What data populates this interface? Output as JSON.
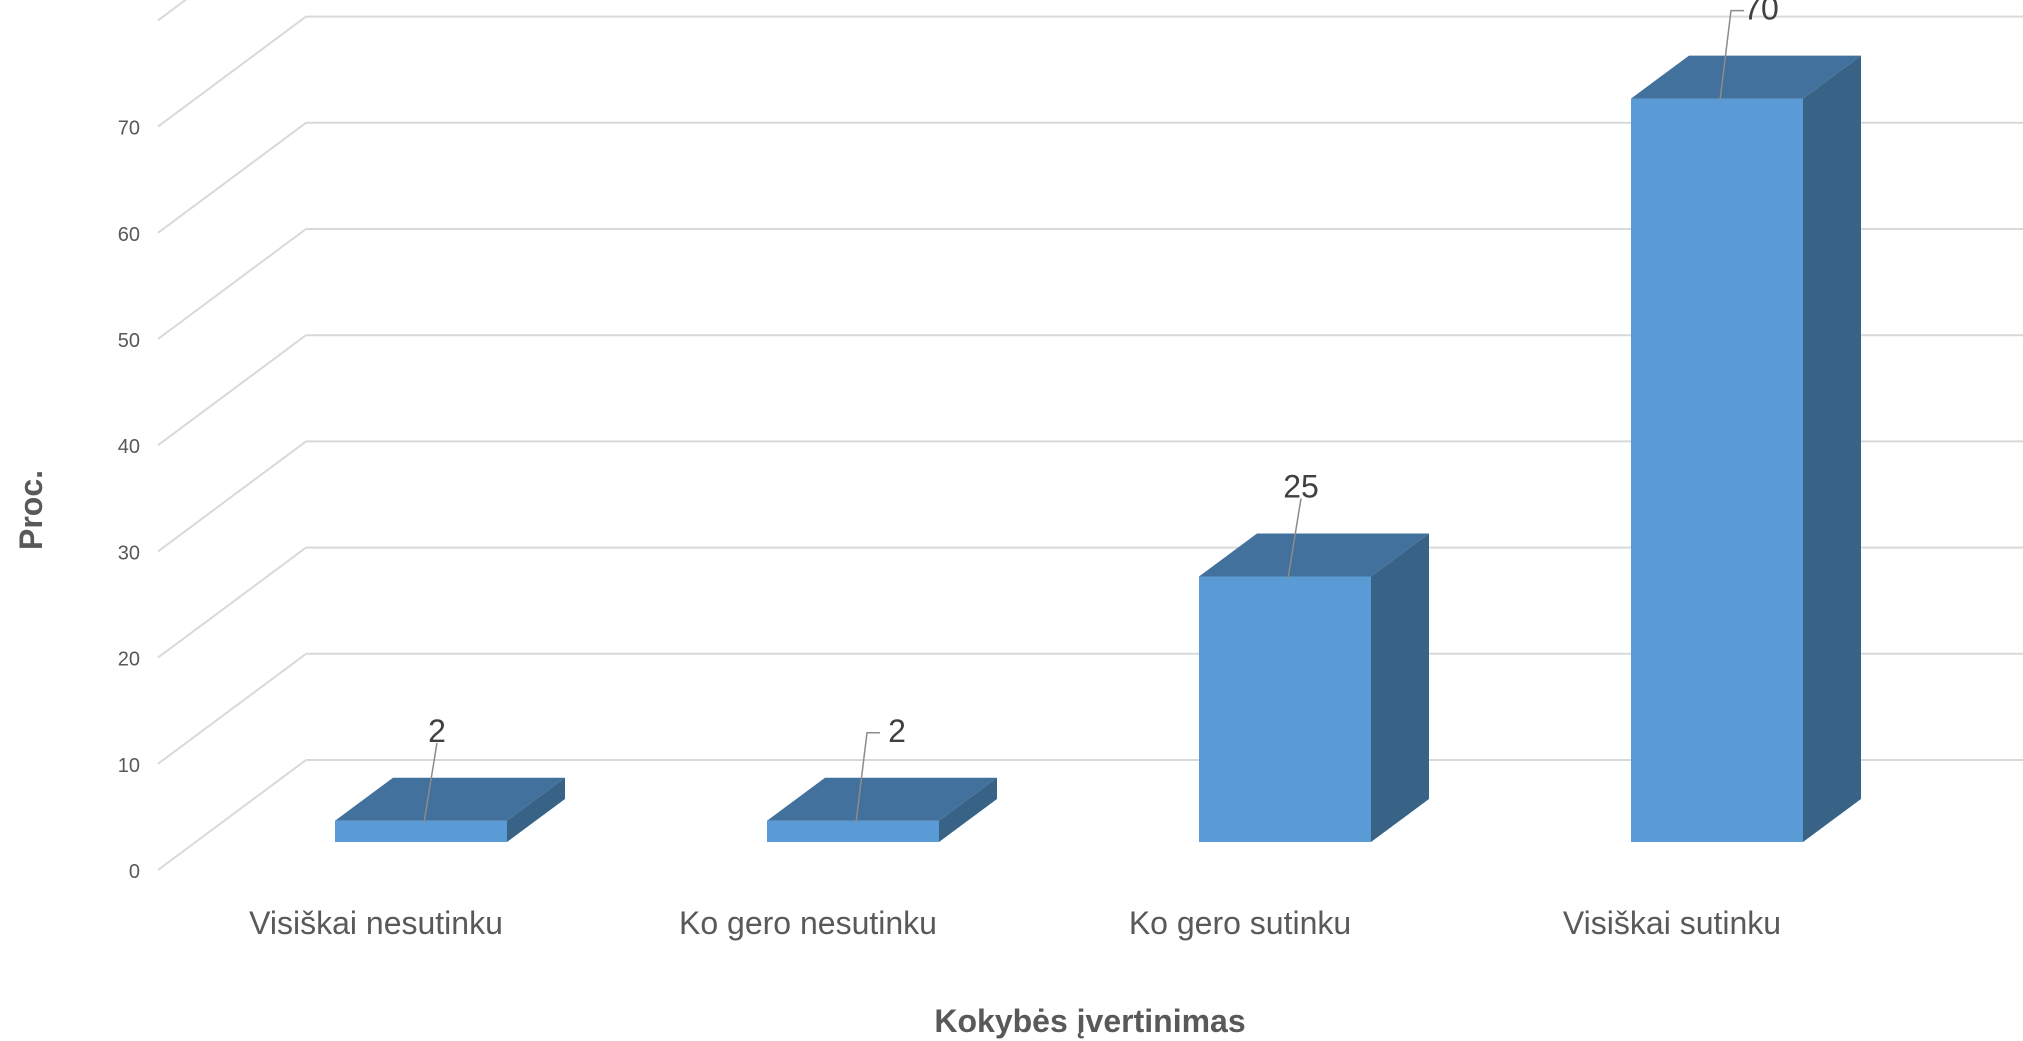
{
  "chart_data": {
    "type": "bar",
    "three_d": true,
    "categories": [
      "Visiškai nesutinku",
      "Ko gero nesutinku",
      "Ko gero sutinku",
      "Visiškai sutinku"
    ],
    "values": [
      2,
      2,
      25,
      70
    ],
    "data_labels": [
      "2",
      "2",
      "25",
      "70"
    ],
    "yticks": [
      "0",
      "10",
      "20",
      "30",
      "40",
      "50",
      "60",
      "70"
    ],
    "ylim": [
      0,
      80
    ],
    "xlabel": "Kokybės įvertinimas",
    "ylabel": "Proc.",
    "grid": true,
    "legend": "none",
    "colors": {
      "front": "#5b9bd5",
      "top": "#41719c",
      "side": "#386386",
      "grid": "#d9d9d9"
    }
  }
}
